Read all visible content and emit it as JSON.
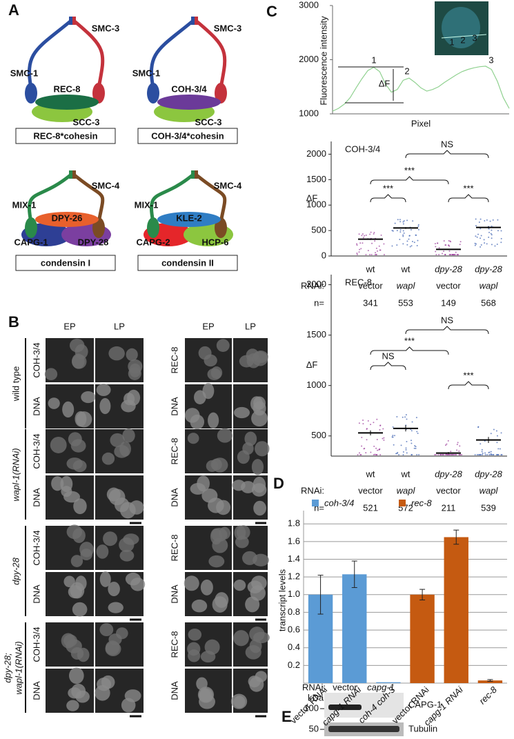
{
  "panel_a": {
    "label": "A",
    "complexes": [
      {
        "name": "REC-8*cohesin",
        "arm_left": {
          "label": "SMC-1",
          "color": "#2b4ea0"
        },
        "arm_right": {
          "label": "SMC-3",
          "color": "#c4323c"
        },
        "kleisin": {
          "label": "REC-8",
          "color": "#1b6e45"
        },
        "subunits": [
          {
            "label": "SCC-3",
            "color": "#8cc63f"
          }
        ]
      },
      {
        "name": "COH-3/4*cohesin",
        "arm_left": {
          "label": "SMC-1",
          "color": "#2b4ea0"
        },
        "arm_right": {
          "label": "SMC-3",
          "color": "#c4323c"
        },
        "kleisin": {
          "label": "COH-3/4",
          "color": "#6b3a99"
        },
        "subunits": [
          {
            "label": "SCC-3",
            "color": "#8cc63f"
          }
        ]
      },
      {
        "name": "condensin I",
        "arm_left": {
          "label": "MIX-1",
          "color": "#2a8a4a"
        },
        "arm_right": {
          "label": "SMC-4",
          "color": "#7b4b24"
        },
        "kleisin": {
          "label": "DPY-26",
          "color": "#e8602c"
        },
        "subunits": [
          {
            "label": "CAPG-1",
            "color": "#2e3f95"
          },
          {
            "label": "DPY-28",
            "color": "#7b3fa0"
          }
        ]
      },
      {
        "name": "condensin II",
        "arm_left": {
          "label": "MIX-1",
          "color": "#2a8a4a"
        },
        "arm_right": {
          "label": "SMC-4",
          "color": "#7b4b24"
        },
        "kleisin": {
          "label": "KLE-2",
          "color": "#2f7dc4"
        },
        "subunits": [
          {
            "label": "CAPG-2",
            "color": "#e5262a"
          },
          {
            "label": "HCP-6",
            "color": "#8cc63f"
          }
        ]
      }
    ]
  },
  "panel_b": {
    "label": "B",
    "column_headers": [
      "EP",
      "LP",
      "EP",
      "LP"
    ],
    "rows": [
      {
        "genotype": [
          "wild type"
        ],
        "stains": [
          "COH-3/4",
          "DNA",
          "REC-8",
          "DNA"
        ]
      },
      {
        "genotype": [
          "wapl-1(RNAi)"
        ],
        "stains": [
          "COH-3/4",
          "DNA",
          "REC-8",
          "DNA"
        ]
      },
      {
        "genotype": [
          "dpy-28"
        ],
        "stains": [
          "COH-3/4",
          "DNA",
          "REC-8",
          "DNA"
        ]
      },
      {
        "genotype": [
          "dpy-28;",
          "wapl-1(RNAi)"
        ],
        "stains": [
          "COH-3/4",
          "DNA",
          "REC-8",
          "DNA"
        ]
      }
    ]
  },
  "panel_c": {
    "label": "C",
    "inset_labels": [
      "1",
      "2",
      "3"
    ]
  },
  "panel_d": {
    "label": "D"
  },
  "panel_e": {
    "label": "E",
    "rnai_label": "RNAi:",
    "lanes": [
      "vector",
      "capg-1"
    ],
    "unit": "kDa",
    "markers": [
      "100",
      "50"
    ],
    "bands": [
      "CAPG-1",
      "Tubulin"
    ]
  },
  "chart_data": [
    {
      "type": "line",
      "y_label": "Fluorescence intensity",
      "x_label": "Pixel",
      "peak_labels": [
        "1",
        "2",
        "3"
      ],
      "delta_label": "ΔF",
      "color": "#8fd18f",
      "x": [
        0,
        1,
        2,
        3,
        4,
        5,
        6,
        7,
        8,
        9,
        10,
        11,
        12,
        13,
        14,
        15,
        16,
        17,
        18,
        19,
        20,
        21,
        22,
        23,
        24,
        25,
        26,
        27,
        28,
        29,
        30
      ],
      "values": [
        1050,
        1100,
        1180,
        1300,
        1480,
        1650,
        1800,
        1860,
        1780,
        1550,
        1400,
        1450,
        1620,
        1660,
        1580,
        1480,
        1420,
        1450,
        1500,
        1580,
        1650,
        1720,
        1780,
        1820,
        1850,
        1870,
        1880,
        1820,
        1600,
        1300,
        1100
      ],
      "xlim": [
        0,
        30
      ],
      "ylim": [
        1000,
        3000
      ],
      "yticks": [
        1000,
        2000,
        3000
      ]
    },
    {
      "type": "dot",
      "title": "COH-3/4",
      "y_label": "ΔF",
      "categories": [
        "wt",
        "wt",
        "dpy-28",
        "dpy-28"
      ],
      "rnai_label": "RNAi:",
      "rnai": [
        "vector",
        "wapl",
        "vector",
        "wapl"
      ],
      "n_label": "n=",
      "n": [
        "341",
        "553",
        "149",
        "568"
      ],
      "values": [
        330,
        550,
        130,
        560
      ],
      "errors": [
        15,
        18,
        10,
        20
      ],
      "ylim": [
        0,
        2250
      ],
      "yticks": [
        0,
        500,
        1000,
        1500,
        2000
      ],
      "significance": [
        "NS",
        "***",
        "***",
        "***"
      ]
    },
    {
      "type": "dot",
      "title": "REC-8",
      "y_label": "ΔF",
      "categories": [
        "wt",
        "wt",
        "dpy-28",
        "dpy-28"
      ],
      "rnai_label": "RNAi:",
      "rnai": [
        "vector",
        "wapl",
        "vector",
        "wapl"
      ],
      "n_label": "n=",
      "n": [
        "521",
        "572",
        "211",
        "539"
      ],
      "values": [
        530,
        575,
        330,
        460
      ],
      "errors": [
        25,
        30,
        10,
        30
      ],
      "ylim": [
        300,
        2100
      ],
      "yticks": [
        500,
        1000,
        1500,
        2000
      ],
      "significance": [
        "NS",
        "***",
        "NS",
        "***"
      ]
    },
    {
      "type": "bar",
      "y_label": "transcript levels",
      "categories": [
        "vector RNAi",
        "capg-1 RNAi",
        "coh-4 coh-3",
        "vector RNAi",
        "capg-1 RNAi",
        "rec-8"
      ],
      "series": [
        {
          "name": "coh-3/4",
          "color": "#5b9bd5",
          "values": [
            1.0,
            1.23,
            0.01,
            null,
            null,
            null
          ],
          "errors": [
            0.22,
            0.15,
            0,
            null,
            null,
            null
          ]
        },
        {
          "name": "rec-8",
          "color": "#c55a11",
          "values": [
            null,
            null,
            null,
            1.0,
            1.65,
            0.03
          ],
          "errors": [
            null,
            null,
            null,
            0.06,
            0.08,
            0.01
          ]
        }
      ],
      "ylim": [
        0,
        1.95
      ],
      "yticks": [
        0.2,
        0.4,
        0.6,
        0.8,
        {
          "value": 1,
          "label": "1.0"
        },
        1.2,
        1.4,
        1.6,
        1.8
      ],
      "grid": true
    }
  ]
}
